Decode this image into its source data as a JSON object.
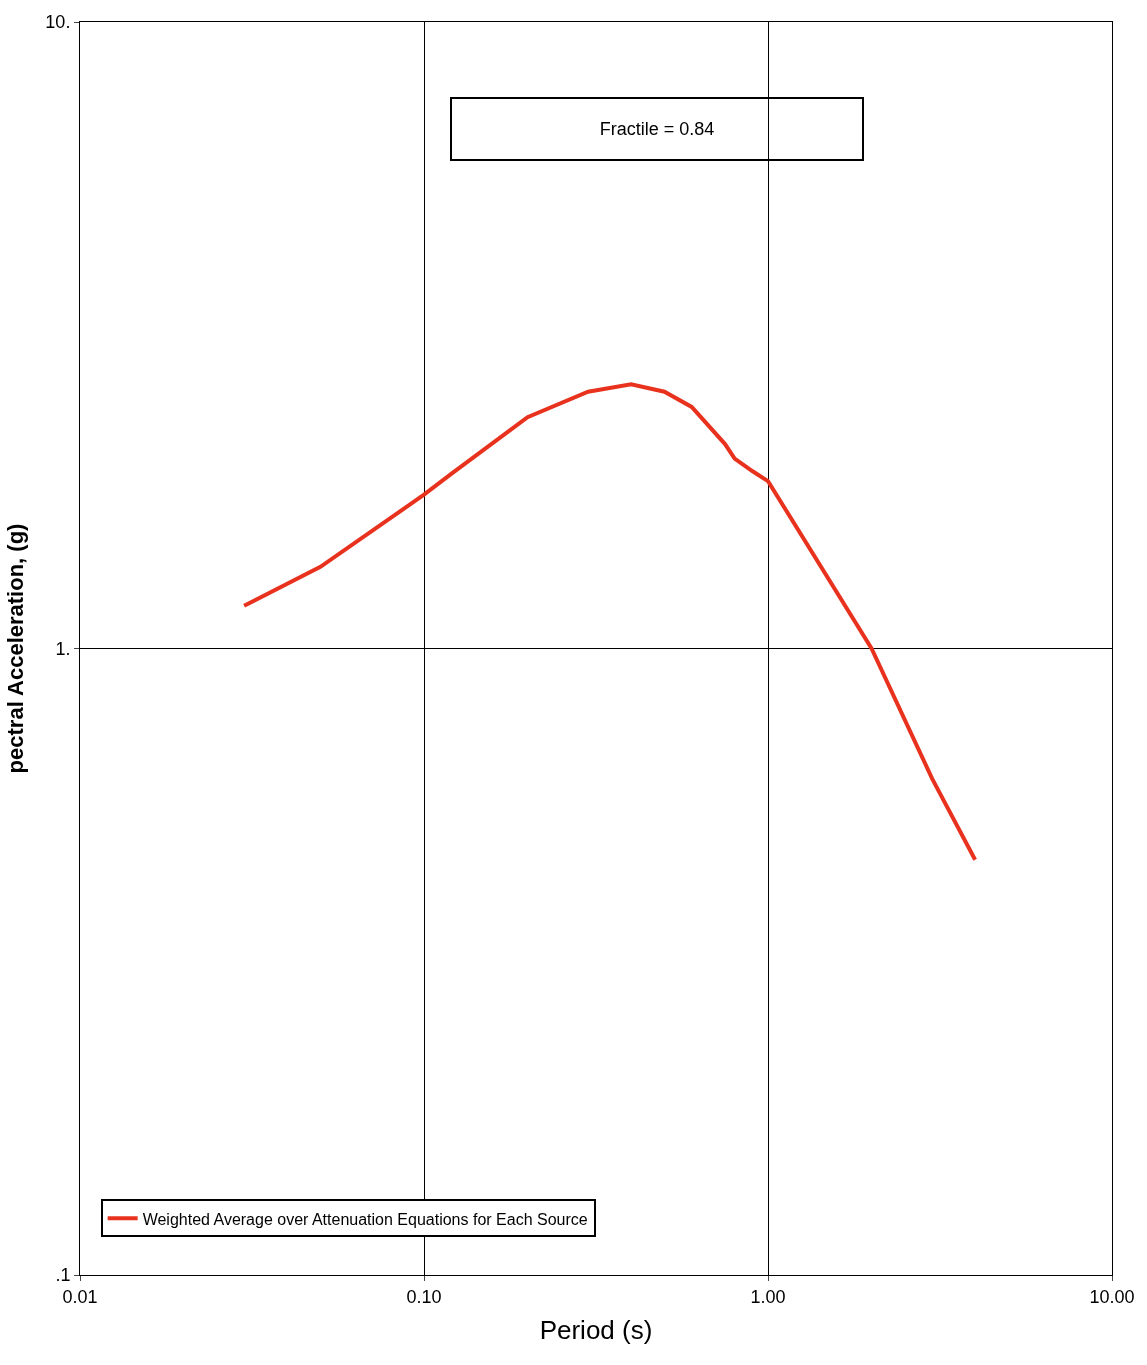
{
  "chart_data": {
    "type": "line",
    "xlabel": "Period (s)",
    "ylabel": "pectral Acceleration, (g)",
    "log": "xy",
    "x": [
      0.03,
      0.05,
      0.1,
      0.12,
      0.2,
      0.3,
      0.4,
      0.5,
      0.6,
      0.75,
      0.8,
      0.9,
      1,
      2,
      3,
      4
    ],
    "series": [
      {
        "name": "Weighted Average over Attenuation Equations for Each Source",
        "color": "#e8321e",
        "values": [
          1.17,
          1.35,
          1.76,
          1.9,
          2.34,
          2.57,
          2.64,
          2.57,
          2.43,
          2.12,
          2.01,
          1.92,
          1.85,
          1.0,
          0.62,
          0.46
        ]
      }
    ],
    "xlim": [
      0.01,
      10
    ],
    "xticks": [
      {
        "value": 0.01,
        "label": "0.01"
      },
      {
        "value": 0.1,
        "label": "0.10"
      },
      {
        "value": 1,
        "label": "1.00"
      },
      {
        "value": 10,
        "label": "10.00"
      }
    ],
    "ylim": [
      0.1,
      10
    ],
    "yticks": [
      {
        "value": 0.1,
        "label": ".1"
      },
      {
        "value": 1,
        "label": "1."
      },
      {
        "value": 10,
        "label": "10."
      }
    ],
    "grid": true,
    "legend": "bottom left",
    "marker": "none",
    "line_style": "solid",
    "annotations": [
      "Fractile = 0.84"
    ]
  }
}
